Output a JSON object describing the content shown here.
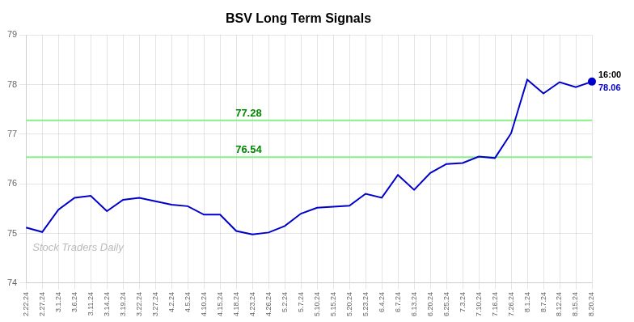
{
  "chart_data": {
    "type": "line",
    "title": "BSV Long Term Signals",
    "categories": [
      "2.22.24",
      "2.27.24",
      "3.1.24",
      "3.6.24",
      "3.11.24",
      "3.14.24",
      "3.19.24",
      "3.22.24",
      "3.27.24",
      "4.2.24",
      "4.5.24",
      "4.10.24",
      "4.15.24",
      "4.18.24",
      "4.23.24",
      "4.26.24",
      "5.2.24",
      "5.7.24",
      "5.10.24",
      "5.15.24",
      "5.20.24",
      "5.23.24",
      "6.4.24",
      "6.7.24",
      "6.13.24",
      "6.20.24",
      "6.25.24",
      "7.3.24",
      "7.10.24",
      "7.16.24",
      "7.26.24",
      "8.1.24",
      "8.7.24",
      "8.12.24",
      "8.15.24",
      "8.20.24"
    ],
    "values": [
      75.12,
      75.03,
      75.48,
      75.72,
      75.76,
      75.45,
      75.68,
      75.72,
      75.65,
      75.58,
      75.55,
      75.38,
      75.38,
      75.05,
      74.98,
      75.02,
      75.15,
      75.4,
      75.52,
      75.54,
      75.56,
      75.8,
      75.72,
      76.18,
      75.88,
      76.22,
      76.4,
      76.42,
      76.55,
      76.52,
      77.02,
      78.1,
      77.82,
      78.05,
      77.95,
      78.06
    ],
    "color": "#0000cc",
    "hlines": [
      {
        "value": 77.28,
        "label": "77.28",
        "color": "#88ee88",
        "label_color": "#008800"
      },
      {
        "value": 76.54,
        "label": "76.54",
        "color": "#88ee88",
        "label_color": "#008800"
      }
    ],
    "last_point_labels": [
      {
        "text": "16:00",
        "color": "#000000"
      },
      {
        "text": "78.06",
        "color": "#0000cc"
      }
    ],
    "watermark": {
      "text": "Stock Traders Daily",
      "color": "#bbbbbb"
    },
    "ylim": [
      74,
      79
    ],
    "yticks": [
      74,
      75,
      76,
      77,
      78,
      79
    ],
    "grid": true
  }
}
